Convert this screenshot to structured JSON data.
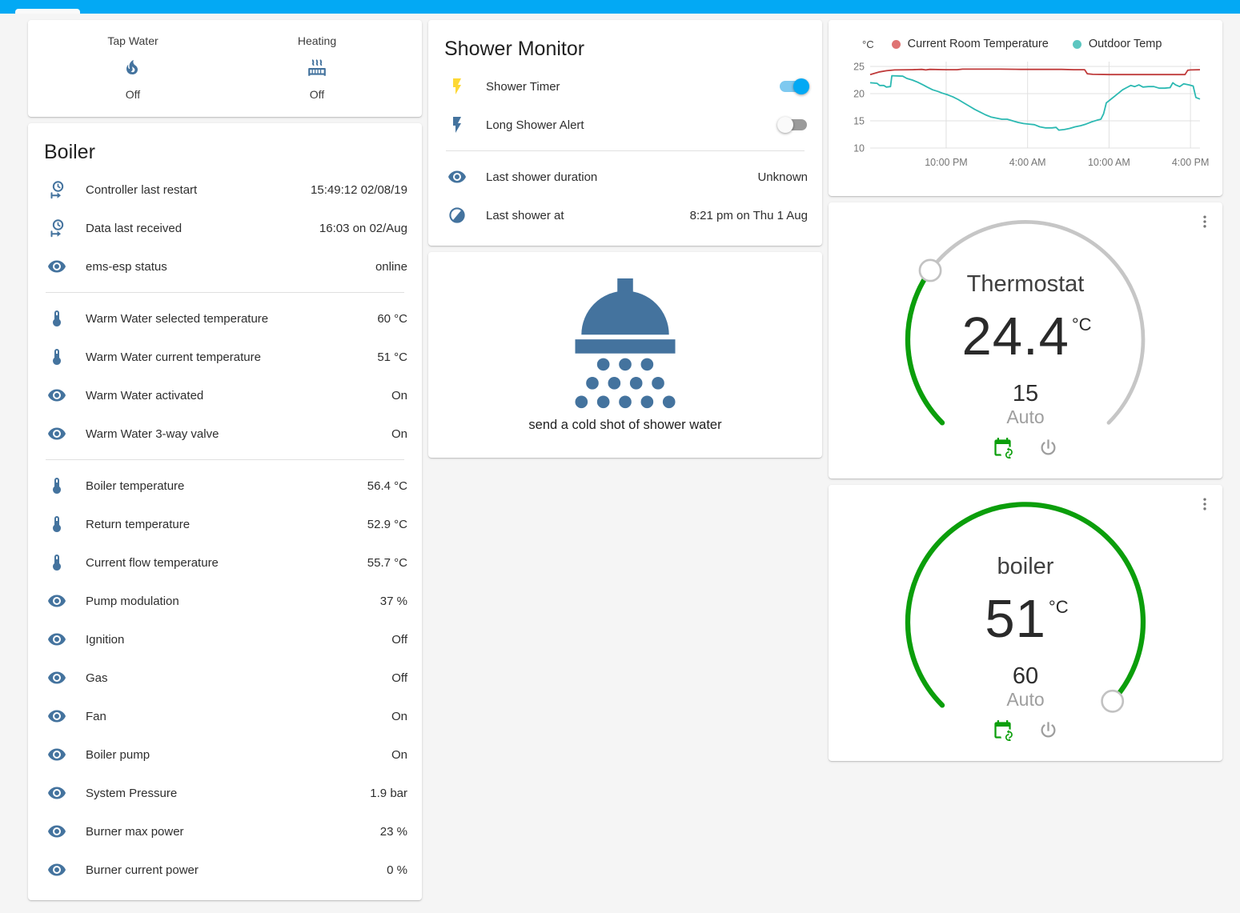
{
  "colors": {
    "accent": "#03a9f4",
    "icon_blue": "#44739e",
    "flash_active": "#fdd835",
    "dial_green": "#0b9e0b",
    "dial_track": "#c6c6c6",
    "power_gray": "#9e9e9e"
  },
  "glance": {
    "items": [
      {
        "label": "Tap Water",
        "icon": "fire-icon",
        "state": "Off"
      },
      {
        "label": "Heating",
        "icon": "radiator-icon",
        "state": "Off"
      }
    ]
  },
  "boiler_card": {
    "title": "Boiler",
    "sections": [
      {
        "rows": [
          {
            "icon": "clock-start-icon",
            "name": "Controller last restart",
            "value": "15:49:12 02/08/19"
          },
          {
            "icon": "clock-start-icon",
            "name": "Data last received",
            "value": "16:03 on 02/Aug"
          },
          {
            "icon": "eye-icon",
            "name": "ems-esp status",
            "value": "online"
          }
        ]
      },
      {
        "rows": [
          {
            "icon": "thermometer-icon",
            "name": "Warm Water selected temperature",
            "value": "60 °C"
          },
          {
            "icon": "thermometer-icon",
            "name": "Warm Water current temperature",
            "value": "51 °C"
          },
          {
            "icon": "eye-icon",
            "name": "Warm Water activated",
            "value": "On"
          },
          {
            "icon": "eye-icon",
            "name": "Warm Water 3-way valve",
            "value": "On"
          }
        ]
      },
      {
        "rows": [
          {
            "icon": "thermometer-icon",
            "name": "Boiler temperature",
            "value": "56.4 °C"
          },
          {
            "icon": "thermometer-icon",
            "name": "Return temperature",
            "value": "52.9 °C"
          },
          {
            "icon": "thermometer-icon",
            "name": "Current flow temperature",
            "value": "55.7 °C"
          },
          {
            "icon": "eye-icon",
            "name": "Pump modulation",
            "value": "37 %"
          },
          {
            "icon": "eye-icon",
            "name": "Ignition",
            "value": "Off"
          },
          {
            "icon": "eye-icon",
            "name": "Gas",
            "value": "Off"
          },
          {
            "icon": "eye-icon",
            "name": "Fan",
            "value": "On"
          },
          {
            "icon": "eye-icon",
            "name": "Boiler pump",
            "value": "On"
          },
          {
            "icon": "eye-icon",
            "name": "System Pressure",
            "value": "1.9 bar"
          },
          {
            "icon": "eye-icon",
            "name": "Burner max power",
            "value": "23 %"
          },
          {
            "icon": "eye-icon",
            "name": "Burner current power",
            "value": "0 %"
          }
        ]
      }
    ]
  },
  "shower_monitor": {
    "title": "Shower Monitor",
    "toggles": [
      {
        "icon": "flash-icon",
        "icon_color": "#fdd835",
        "label": "Shower Timer",
        "on": true
      },
      {
        "icon": "flash-icon",
        "icon_color": "#44739e",
        "label": "Long Shower Alert",
        "on": false
      }
    ],
    "info_rows": [
      {
        "icon": "eye-icon",
        "name": "Last shower duration",
        "value": "Unknown"
      },
      {
        "icon": "theme-light-dark-icon",
        "name": "Last shower at",
        "value": "8:21 pm on Thu 1 Aug"
      }
    ]
  },
  "shower_action": {
    "label": "send a cold shot of shower water"
  },
  "chart_data": {
    "type": "line",
    "unit": "°C",
    "xlim": [
      16.4,
      40.7
    ],
    "ylim": [
      10,
      25.8
    ],
    "yticks": [
      10,
      15,
      20,
      25
    ],
    "xticks": [
      {
        "t": 22,
        "label": "10:00 PM"
      },
      {
        "t": 28,
        "label": "4:00 AM"
      },
      {
        "t": 34,
        "label": "10:00 AM"
      },
      {
        "t": 40,
        "label": "4:00 PM"
      }
    ],
    "grid": true,
    "legend_position": "top",
    "series": [
      {
        "name": "Current Room Temperature",
        "color": "#bf3a3a",
        "dot_color": "#df7373",
        "points": [
          [
            16.4,
            23.5
          ],
          [
            16.7,
            23.7
          ],
          [
            17.1,
            24.0
          ],
          [
            17.6,
            24.2
          ],
          [
            18.2,
            24.35
          ],
          [
            19.5,
            24.4
          ],
          [
            20.2,
            24.45
          ],
          [
            20.5,
            24.35
          ],
          [
            20.8,
            24.45
          ],
          [
            22.0,
            24.4
          ],
          [
            22.8,
            24.4
          ],
          [
            23.2,
            24.5
          ],
          [
            26.0,
            24.5
          ],
          [
            27.5,
            24.45
          ],
          [
            29.0,
            24.45
          ],
          [
            30.5,
            24.45
          ],
          [
            31.4,
            24.4
          ],
          [
            32.2,
            24.4
          ],
          [
            32.4,
            23.65
          ],
          [
            32.8,
            23.55
          ],
          [
            34.0,
            23.5
          ],
          [
            36.0,
            23.5
          ],
          [
            38.0,
            23.5
          ],
          [
            39.6,
            23.5
          ],
          [
            39.8,
            24.3
          ],
          [
            40.0,
            24.35
          ],
          [
            40.7,
            24.4
          ]
        ]
      },
      {
        "name": "Outdoor Temp",
        "color": "#2cb9b2",
        "dot_color": "#5cc6c0",
        "points": [
          [
            16.4,
            22.0
          ],
          [
            16.9,
            21.9
          ],
          [
            17.1,
            21.5
          ],
          [
            17.4,
            21.5
          ],
          [
            17.6,
            21.2
          ],
          [
            17.9,
            21.3
          ],
          [
            18.0,
            23.3
          ],
          [
            18.8,
            23.2
          ],
          [
            19.1,
            22.8
          ],
          [
            19.5,
            22.5
          ],
          [
            19.9,
            22.1
          ],
          [
            20.3,
            21.6
          ],
          [
            20.6,
            21.2
          ],
          [
            21.0,
            20.7
          ],
          [
            21.4,
            20.4
          ],
          [
            21.7,
            20.1
          ],
          [
            22.1,
            19.8
          ],
          [
            22.5,
            19.4
          ],
          [
            22.9,
            18.9
          ],
          [
            23.3,
            18.3
          ],
          [
            23.7,
            17.7
          ],
          [
            24.1,
            17.1
          ],
          [
            24.5,
            16.6
          ],
          [
            24.9,
            16.1
          ],
          [
            25.3,
            15.7
          ],
          [
            25.7,
            15.5
          ],
          [
            26.1,
            15.3
          ],
          [
            26.5,
            15.3
          ],
          [
            26.9,
            15.0
          ],
          [
            27.3,
            14.7
          ],
          [
            27.7,
            14.5
          ],
          [
            28.1,
            14.4
          ],
          [
            28.5,
            14.3
          ],
          [
            28.9,
            13.9
          ],
          [
            29.3,
            13.7
          ],
          [
            29.8,
            13.7
          ],
          [
            30.1,
            13.8
          ],
          [
            30.3,
            13.3
          ],
          [
            30.7,
            13.4
          ],
          [
            31.1,
            13.6
          ],
          [
            31.5,
            13.9
          ],
          [
            31.9,
            14.1
          ],
          [
            32.3,
            14.4
          ],
          [
            32.7,
            14.8
          ],
          [
            33.1,
            15.1
          ],
          [
            33.4,
            15.3
          ],
          [
            33.6,
            16.3
          ],
          [
            33.8,
            18.3
          ],
          [
            34.1,
            18.9
          ],
          [
            34.4,
            19.5
          ],
          [
            34.7,
            20.1
          ],
          [
            35.0,
            20.7
          ],
          [
            35.3,
            21.1
          ],
          [
            35.6,
            21.5
          ],
          [
            35.9,
            21.3
          ],
          [
            36.2,
            21.6
          ],
          [
            36.5,
            21.2
          ],
          [
            36.9,
            21.3
          ],
          [
            37.3,
            21.3
          ],
          [
            37.7,
            21.0
          ],
          [
            38.1,
            21.0
          ],
          [
            38.5,
            21.1
          ],
          [
            38.7,
            22.0
          ],
          [
            38.9,
            21.6
          ],
          [
            39.2,
            21.3
          ],
          [
            39.5,
            21.8
          ],
          [
            39.9,
            21.6
          ],
          [
            40.2,
            21.4
          ],
          [
            40.4,
            19.3
          ],
          [
            40.7,
            19.0
          ]
        ]
      }
    ]
  },
  "thermostat_card": {
    "title": "Thermostat",
    "value": "24.4",
    "unit": "°C",
    "target": "15",
    "mode": "Auto",
    "progress": 0.3
  },
  "boiler_dial_card": {
    "title": "boiler",
    "value": "51",
    "unit": "°C",
    "target": "60",
    "mode": "Auto",
    "progress": 0.99
  }
}
